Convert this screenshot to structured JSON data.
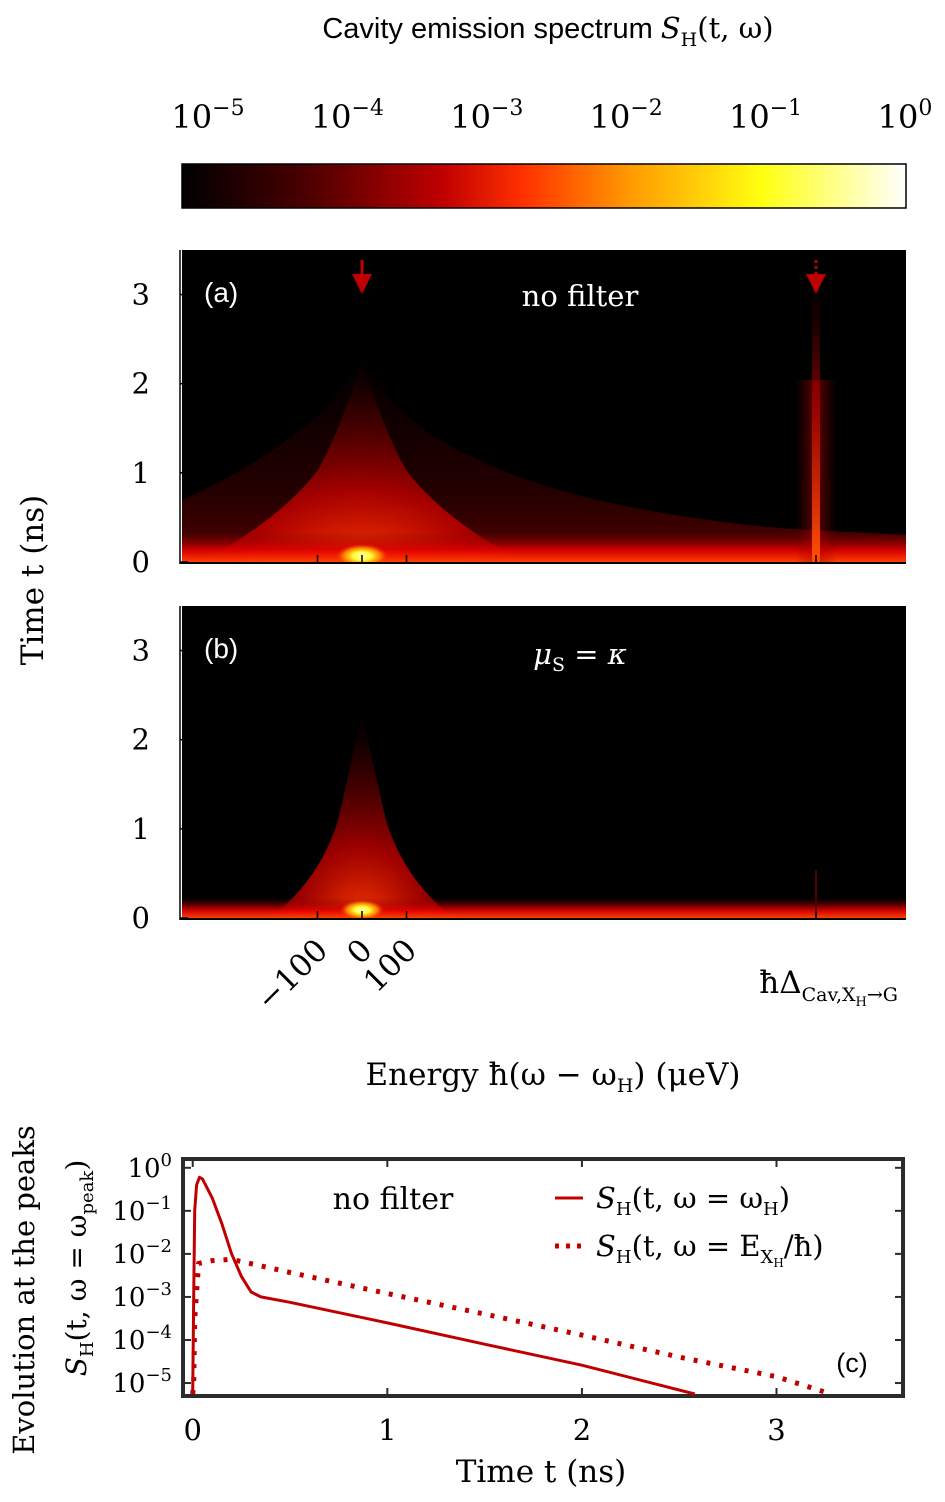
{
  "colorbar": {
    "title_text": "Cavity emission spectrum ",
    "title_math": "S",
    "title_sub": "H",
    "title_args": "(t, ω)",
    "tick_base": "10",
    "tick_exponents": [
      "−5",
      "−4",
      "−3",
      "−2",
      "−1",
      "0"
    ],
    "scale": "log",
    "range": [
      1e-05,
      1
    ],
    "colormap": [
      "#000000",
      "#4a0000",
      "#c00000",
      "#ff3000",
      "#ff9a00",
      "#ffff10",
      "#ffffff"
    ]
  },
  "panel_a": {
    "label": "(a)",
    "caption": "no filter"
  },
  "panel_b": {
    "label": "(b)",
    "caption_math": "μ",
    "caption_sub": "S",
    "caption_rest": " = κ"
  },
  "heatmap_shared": {
    "ylabel": "Time t (ns)",
    "yticks": [
      "0",
      "1",
      "2",
      "3"
    ],
    "xticks": [
      "−100",
      "0",
      "100"
    ],
    "x_extra_tick": "ħΔ",
    "x_extra_tick_sub": "Cav,X",
    "x_extra_tick_subsub": "H",
    "x_extra_tick_sub2": "→G",
    "xlabel": "Energy ħ(ω − ω",
    "xlabel_sub": "H",
    "xlabel_end": ") (μeV)",
    "marker_color": "#c00000"
  },
  "panel_c": {
    "label": "(c)",
    "annotation": "no filter",
    "ylabel_top": "Evolution at the peaks",
    "ylabel_bottom": "S",
    "ylabel_bottom_sub": "H",
    "ylabel_bottom_rest": "(t, ω = ω",
    "ylabel_bottom_sub2": "peak",
    "ylabel_bottom_end": ")",
    "xlabel": "Time t (ns)",
    "xticks": [
      "0",
      "1",
      "2",
      "3"
    ],
    "ytick_base": "10",
    "ytick_exponents": [
      "0",
      "−1",
      "−2",
      "−3",
      "−4",
      "−5"
    ],
    "legend": [
      {
        "prefix": "S",
        "sub": "H",
        "rest": "(t, ω = ω",
        "sub2": "H",
        "end": ")"
      },
      {
        "prefix": "S",
        "sub": "H",
        "rest": "(t, ω = E",
        "sub2": "X",
        "subsub": "H",
        "end": "/ħ)"
      }
    ],
    "line_color": "#c00000"
  },
  "chart_data": [
    {
      "type": "heatmap",
      "panel": "(a)",
      "xticks": [
        "−100",
        "0",
        "100"
      ],
      "yticks": [
        0,
        1,
        2,
        3
      ],
      "ylim": [
        0,
        3.5
      ],
      "color_scale": "log",
      "clim": [
        1e-05,
        1
      ],
      "peaks": [
        {
          "x": 0,
          "label": "ω = ω_H",
          "visible_until_t_ns": 2.3
        },
        {
          "x": "ħΔ_Cav,XH→G",
          "visible_until_t_ns": 3.2
        }
      ]
    },
    {
      "type": "heatmap",
      "panel": "(b)",
      "xticks": [
        "−100",
        "0",
        "100"
      ],
      "yticks": [
        0,
        1,
        2,
        3
      ],
      "ylim": [
        0,
        3.5
      ],
      "color_scale": "log",
      "clim": [
        1e-05,
        1
      ],
      "peaks": [
        {
          "x": 0,
          "visible_until_t_ns": 2.3
        }
      ]
    },
    {
      "type": "line",
      "panel": "(c)",
      "xlabel": "Time t (ns)",
      "ylabel": "S_H(t, ω = ω_peak)",
      "xlim": [
        -0.05,
        3.65
      ],
      "ylim": [
        5e-06,
        1.6
      ],
      "yscale": "log",
      "series": [
        {
          "name": "S_H(t, ω = ω_H)",
          "style": "solid",
          "x": [
            0,
            0.005,
            0.01,
            0.02,
            0.035,
            0.05,
            0.1,
            0.15,
            0.2,
            0.25,
            0.3,
            0.35,
            0.5,
            1.0,
            1.5,
            2.0,
            2.58
          ],
          "y": [
            5e-06,
            0.001,
            0.1,
            0.4,
            0.6,
            0.55,
            0.2,
            0.05,
            0.01,
            0.003,
            0.0013,
            0.001,
            0.00075,
            0.00025,
            8e-05,
            2.6e-05,
            5e-06
          ]
        },
        {
          "name": "S_H(t, ω = E_XH/ħ)",
          "style": "dotted",
          "x": [
            0,
            0.005,
            0.01,
            0.03,
            0.1,
            0.2,
            0.5,
            1.0,
            1.5,
            2.0,
            2.5,
            3.0,
            3.28
          ],
          "y": [
            5e-06,
            1e-05,
            0.0003,
            0.006,
            0.007,
            0.0075,
            0.0037,
            0.0012,
            0.0004,
            0.00013,
            4e-05,
            1.4e-05,
            5e-06
          ]
        }
      ]
    }
  ]
}
